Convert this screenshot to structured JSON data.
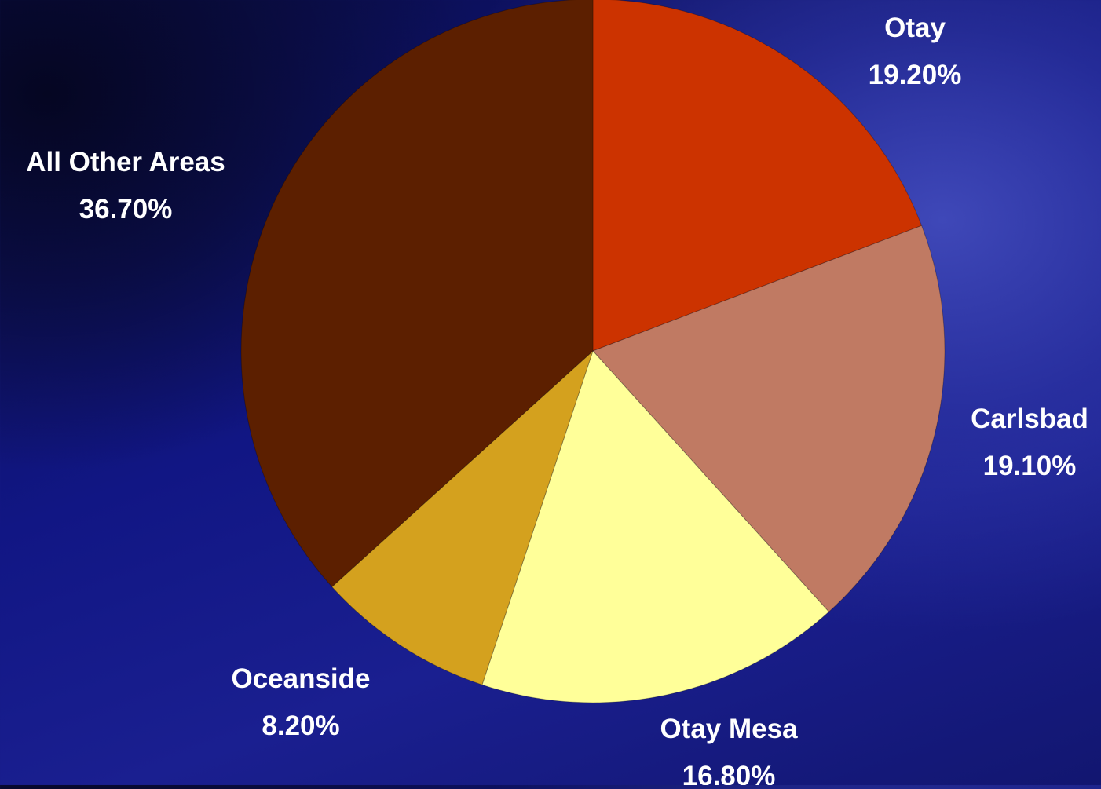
{
  "chart_data": {
    "type": "pie",
    "title": "",
    "start_angle_deg": 0,
    "direction": "clockwise",
    "slices": [
      {
        "label": "Otay",
        "value": 19.2,
        "value_label": "19.20%",
        "color": "#cc3300"
      },
      {
        "label": "Carlsbad",
        "value": 19.1,
        "value_label": "19.10%",
        "color": "#c07a63"
      },
      {
        "label": "Otay Mesa",
        "value": 16.8,
        "value_label": "16.80%",
        "color": "#ffff99"
      },
      {
        "label": "Oceanside",
        "value": 8.2,
        "value_label": "8.20%",
        "color": "#d4a11e"
      },
      {
        "label": "All Other Areas",
        "value": 36.7,
        "value_label": "36.70%",
        "color": "#5c1f00"
      }
    ]
  }
}
